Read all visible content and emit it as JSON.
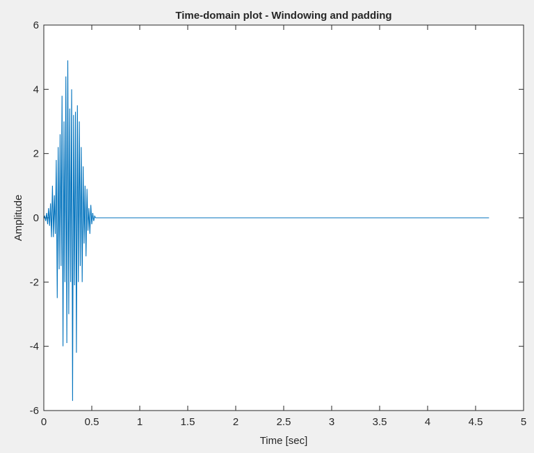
{
  "chart_data": {
    "type": "line",
    "title": "Time-domain plot - Windowing and padding",
    "xlabel": "Time [sec]",
    "ylabel": "Amplitude",
    "xlim": [
      0,
      5
    ],
    "ylim": [
      -6,
      6
    ],
    "x_ticks": [
      0,
      0.5,
      1,
      1.5,
      2,
      2.5,
      3,
      3.5,
      4,
      4.5,
      5
    ],
    "x_tick_labels": [
      "0",
      "0.5",
      "1",
      "1.5",
      "2",
      "2.5",
      "3",
      "3.5",
      "4",
      "4.5",
      "5"
    ],
    "y_ticks": [
      -6,
      -4,
      -2,
      0,
      2,
      4,
      6
    ],
    "y_tick_labels": [
      "-6",
      "-4",
      "-2",
      "0",
      "2",
      "4",
      "6"
    ],
    "grid": false,
    "line_color": "#0072bd",
    "series": [
      {
        "x": [
          0,
          0.01,
          0.02,
          0.03,
          0.04,
          0.05,
          0.06,
          0.07,
          0.08,
          0.09,
          0.1,
          0.11,
          0.12,
          0.13,
          0.14,
          0.15,
          0.16,
          0.17,
          0.18,
          0.19,
          0.2,
          0.21,
          0.22,
          0.23,
          0.24,
          0.25,
          0.26,
          0.27,
          0.28,
          0.29,
          0.3,
          0.31,
          0.32,
          0.33,
          0.34,
          0.35,
          0.36,
          0.37,
          0.38,
          0.39,
          0.4,
          0.41,
          0.42,
          0.43,
          0.44,
          0.45,
          0.46,
          0.47,
          0.48,
          0.49,
          0.5,
          0.51,
          0.52,
          0.53,
          0.54,
          0.55,
          0.56,
          0.57,
          0.58,
          0.59,
          0.6,
          0.61,
          0.62,
          0.63,
          4.64
        ],
        "y": [
          0.0,
          0.05,
          -0.1,
          0.15,
          -0.2,
          0.3,
          -0.25,
          0.45,
          -0.6,
          1.0,
          -0.6,
          0.7,
          -0.5,
          1.8,
          -2.5,
          2.2,
          -1.6,
          2.6,
          -1.5,
          3.8,
          -4.0,
          3.0,
          -2.0,
          4.4,
          -3.9,
          4.9,
          -3.0,
          3.4,
          -2.0,
          4.0,
          -5.7,
          3.2,
          -2.1,
          3.3,
          -4.2,
          3.5,
          -2.0,
          3.0,
          -1.5,
          2.2,
          -2.0,
          1.6,
          -0.8,
          1.0,
          -1.2,
          0.9,
          -0.4,
          0.3,
          -0.5,
          0.4,
          -0.2,
          0.15,
          -0.1,
          0.05,
          0.0,
          0.0,
          0.0,
          0.0,
          0.0,
          0.0,
          0.0,
          0.0,
          0.0,
          0.0,
          0.0
        ]
      }
    ]
  }
}
